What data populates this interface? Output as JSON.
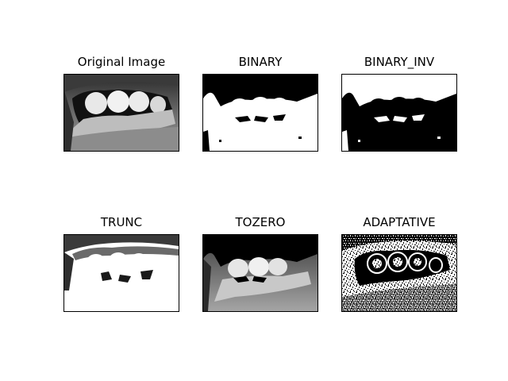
{
  "figure": {
    "panels": [
      {
        "title": "Original Image",
        "kind": "original"
      },
      {
        "title": "BINARY",
        "kind": "binary"
      },
      {
        "title": "BINARY_INV",
        "kind": "binary-inverted"
      },
      {
        "title": "TRUNC",
        "kind": "truncated"
      },
      {
        "title": "TOZERO",
        "kind": "tozero"
      },
      {
        "title": "ADAPTATIVE",
        "kind": "adaptive"
      }
    ],
    "colors": {
      "background": "#ffffff",
      "frame": "#000000",
      "teeth": "#f2f2f2",
      "gum_dark": "#1a1a1a",
      "skin_mid": "#8c8c8c"
    }
  }
}
